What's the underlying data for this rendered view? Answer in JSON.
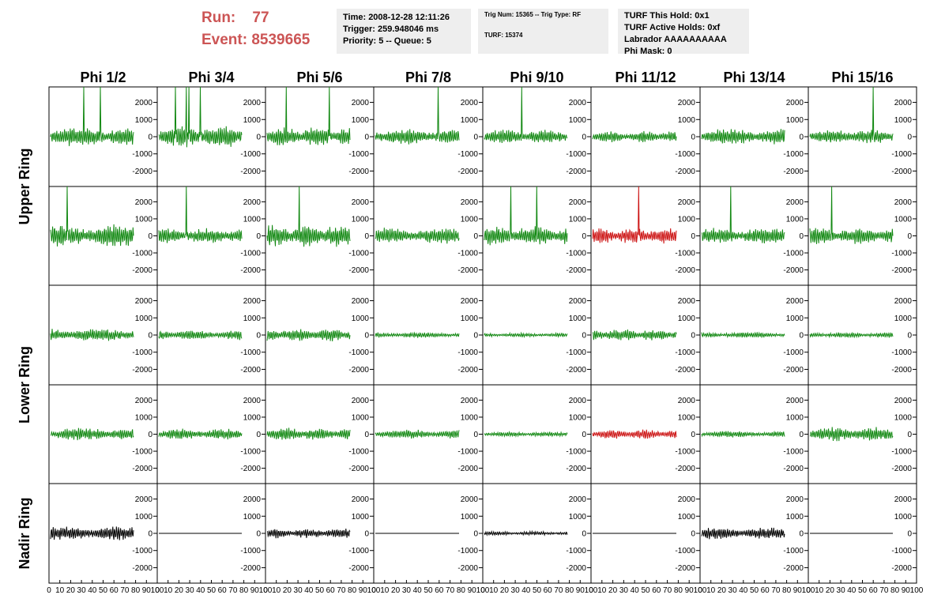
{
  "header": {
    "run_label": "Run:",
    "run_value": "77",
    "event_label": "Event:",
    "event_value": "8539665"
  },
  "time_box": {
    "time": "Time: 2008-12-28 12:11:26",
    "trigger": "Trigger: 259.948046 ms",
    "priority": "Priority: 5 -- Queue: 5"
  },
  "trig_box": {
    "trig": "Trig Num: 15365 -- Trig Type: RF",
    "turf": "TURF: 15374"
  },
  "turf_box": {
    "hold": "TURF This Hold: 0x1",
    "active": "TURF Active Holds: 0xf",
    "labrador": "Labrador AAAAAAAAAA",
    "phimask": "Phi Mask: 0"
  },
  "columns": [
    "Phi 1/2",
    "Phi 3/4",
    "Phi 5/6",
    "Phi 7/8",
    "Phi 9/10",
    "Phi 11/12",
    "Phi 13/14",
    "Phi 15/16"
  ],
  "ring_labels": {
    "upper": "Upper Ring",
    "lower": "Lower Ring",
    "nadir": "Nadir Ring"
  },
  "y_ticks": [
    "2000",
    "1000",
    "0",
    "-1000",
    "-2000"
  ],
  "y_tick_values": [
    2000,
    1000,
    0,
    -1000,
    -2000
  ],
  "x_ticks": [
    "0",
    "10",
    "20",
    "30",
    "40",
    "50",
    "60",
    "70",
    "80",
    "90",
    "100"
  ],
  "colors": {
    "green": "#118811",
    "red": "#cc1111",
    "black": "#000000",
    "accent": "#cc5555"
  },
  "rows": [
    {
      "ring": "upper",
      "cells": [
        {
          "color": "green",
          "amp": 600,
          "spikes": [
            [
              40,
              2900
            ],
            [
              60,
              2900
            ]
          ]
        },
        {
          "color": "green",
          "amp": 700,
          "spikes": [
            [
              20,
              2900
            ],
            [
              33,
              2900
            ],
            [
              36,
              2900
            ],
            [
              50,
              2900
            ]
          ]
        },
        {
          "color": "green",
          "amp": 600,
          "spikes": [
            [
              23,
              2900
            ],
            [
              75,
              2900
            ]
          ]
        },
        {
          "color": "green",
          "amp": 500,
          "spikes": [
            [
              75,
              2900
            ]
          ]
        },
        {
          "color": "green",
          "amp": 450,
          "spikes": [
            [
              45,
              2900
            ]
          ]
        },
        {
          "color": "green",
          "amp": 350,
          "spikes": []
        },
        {
          "color": "green",
          "amp": 500,
          "spikes": []
        },
        {
          "color": "green",
          "amp": 450,
          "spikes": [
            [
              76,
              2900
            ]
          ]
        }
      ]
    },
    {
      "ring": "upper",
      "cells": [
        {
          "color": "green",
          "amp": 700,
          "spikes": [
            [
              20,
              2900
            ]
          ]
        },
        {
          "color": "green",
          "amp": 500,
          "spikes": [
            [
              33,
              2900
            ]
          ]
        },
        {
          "color": "green",
          "amp": 700,
          "spikes": [
            [
              39,
              2900
            ]
          ]
        },
        {
          "color": "green",
          "amp": 500,
          "spikes": []
        },
        {
          "color": "green",
          "amp": 600,
          "spikes": [
            [
              32,
              2900
            ],
            [
              63,
              2900
            ]
          ]
        },
        {
          "color": "red",
          "amp": 500,
          "spikes": [
            [
              55,
              2900
            ]
          ]
        },
        {
          "color": "green",
          "amp": 500,
          "spikes": [
            [
              35,
              2900
            ]
          ]
        },
        {
          "color": "green",
          "amp": 500,
          "spikes": [
            [
              26,
              2900
            ]
          ]
        }
      ]
    },
    {
      "ring": "lower",
      "cells": [
        {
          "color": "green",
          "amp": 400,
          "spikes": []
        },
        {
          "color": "green",
          "amp": 300,
          "spikes": []
        },
        {
          "color": "green",
          "amp": 400,
          "spikes": []
        },
        {
          "color": "green",
          "amp": 180,
          "spikes": []
        },
        {
          "color": "green",
          "amp": 130,
          "spikes": []
        },
        {
          "color": "green",
          "amp": 350,
          "spikes": []
        },
        {
          "color": "green",
          "amp": 180,
          "spikes": []
        },
        {
          "color": "green",
          "amp": 180,
          "spikes": []
        }
      ]
    },
    {
      "ring": "lower",
      "cells": [
        {
          "color": "green",
          "amp": 400,
          "spikes": []
        },
        {
          "color": "green",
          "amp": 350,
          "spikes": []
        },
        {
          "color": "green",
          "amp": 400,
          "spikes": []
        },
        {
          "color": "green",
          "amp": 300,
          "spikes": []
        },
        {
          "color": "green",
          "amp": 150,
          "spikes": []
        },
        {
          "color": "red",
          "amp": 300,
          "spikes": []
        },
        {
          "color": "green",
          "amp": 200,
          "spikes": []
        },
        {
          "color": "green",
          "amp": 450,
          "spikes": []
        }
      ]
    },
    {
      "ring": "nadir",
      "cells": [
        {
          "color": "black",
          "amp": 450,
          "spikes": []
        },
        {
          "color": "black",
          "amp": 0,
          "spikes": []
        },
        {
          "color": "black",
          "amp": 300,
          "spikes": []
        },
        {
          "color": "black",
          "amp": 0,
          "spikes": []
        },
        {
          "color": "black",
          "amp": 120,
          "spikes": []
        },
        {
          "color": "black",
          "amp": 0,
          "spikes": []
        },
        {
          "color": "black",
          "amp": 350,
          "spikes": []
        },
        {
          "color": "black",
          "amp": 0,
          "spikes": []
        }
      ]
    }
  ]
}
